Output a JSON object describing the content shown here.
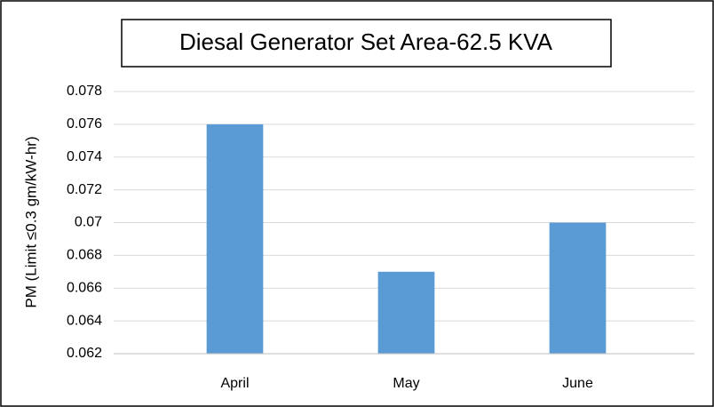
{
  "chart_data": {
    "type": "bar",
    "title": "Diesal Generator Set Area-62.5 KVA",
    "y_label": "PM (Limit ≤0.3 gm/kW-hr)",
    "categories": [
      "April",
      "May",
      "June"
    ],
    "values": [
      0.076,
      0.067,
      0.07
    ],
    "color": "#5b9bd5",
    "ylim": [
      0.062,
      0.078
    ],
    "yticks": [
      0.062,
      0.064,
      0.066,
      0.068,
      0.07,
      0.072,
      0.074,
      0.076,
      0.078
    ],
    "grid": true
  }
}
